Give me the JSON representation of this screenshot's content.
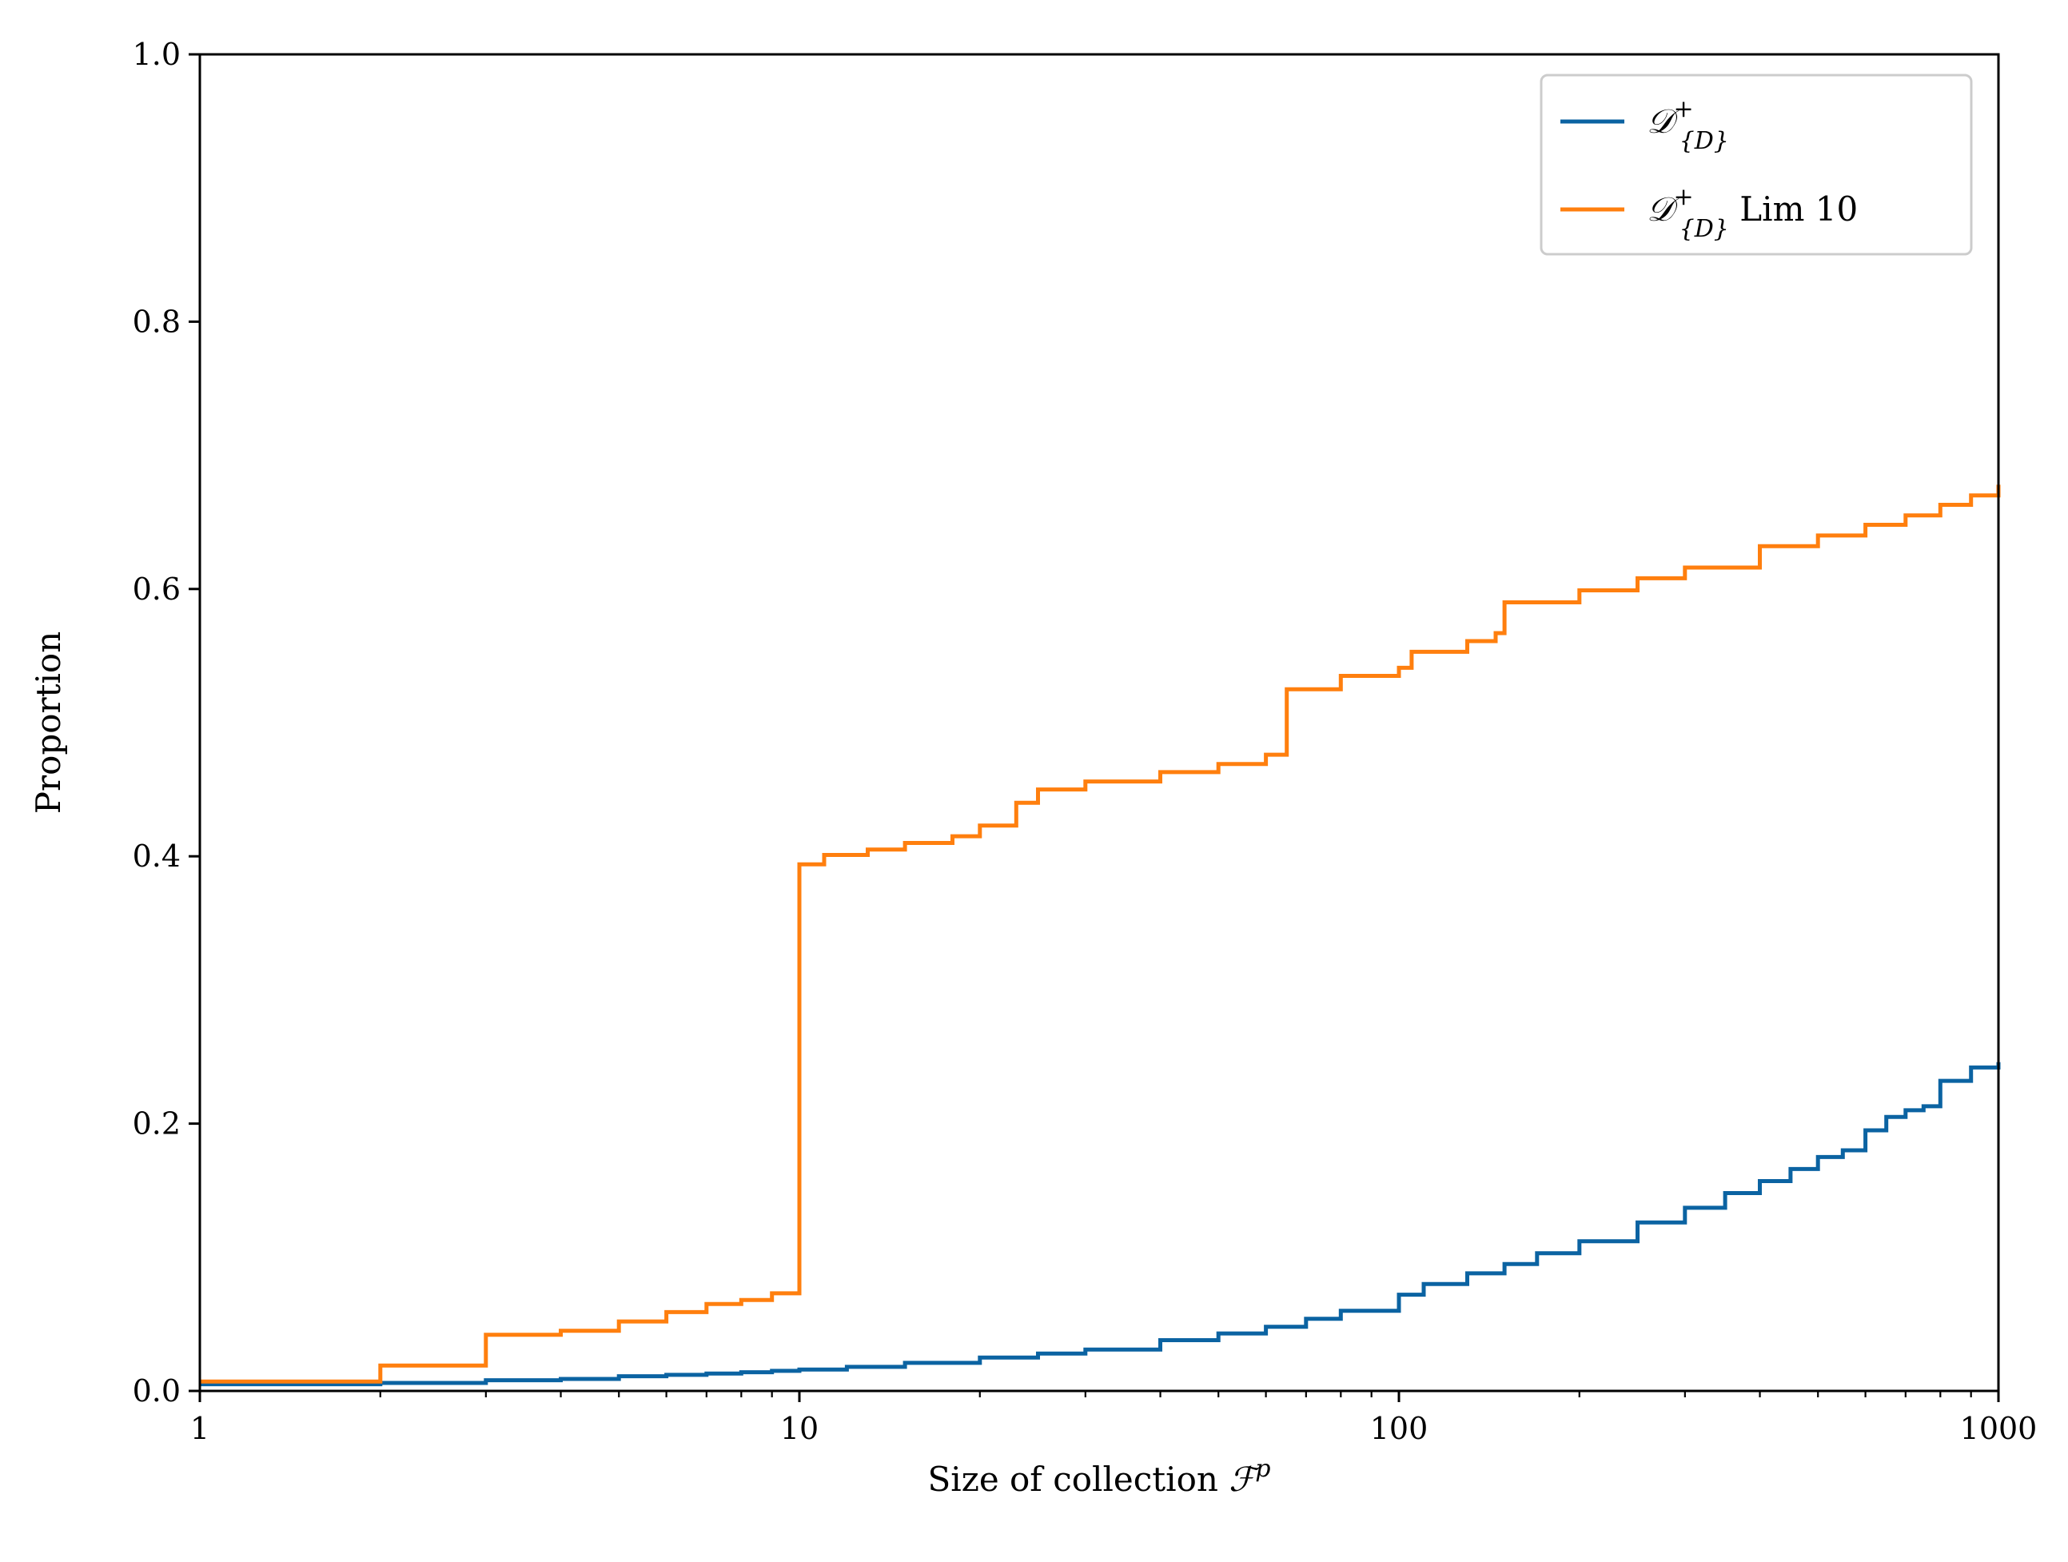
{
  "chart_data": {
    "type": "line",
    "xlabel": {
      "text": "Size of collection ",
      "math_symbol": "ℱ",
      "math_superscript": "p"
    },
    "ylabel": "Proportion",
    "x_scale": "log",
    "xlim": [
      1,
      1000
    ],
    "ylim": [
      0,
      1.0
    ],
    "x_ticks": [
      1,
      10,
      100,
      1000
    ],
    "x_tick_labels": [
      "1",
      "10",
      "100",
      "1000"
    ],
    "y_ticks": [
      0,
      0.2,
      0.4,
      0.6,
      0.8,
      1.0
    ],
    "y_tick_labels": [
      "0.0",
      "0.2",
      "0.4",
      "0.6",
      "0.8",
      "1.0"
    ],
    "grid": false,
    "legend_position": "top-right",
    "series": [
      {
        "name": "𝒟⁺{D}",
        "legend": {
          "symbol": "𝒟",
          "superscript": "+",
          "subscript": "{D}",
          "suffix": ""
        },
        "color": "#0b63a2",
        "step": true,
        "x": [
          1,
          2,
          3,
          4,
          5,
          6,
          7,
          8,
          9,
          10,
          12,
          15,
          20,
          25,
          30,
          40,
          50,
          60,
          70,
          80,
          100,
          110,
          130,
          150,
          170,
          200,
          250,
          300,
          350,
          400,
          450,
          500,
          550,
          600,
          650,
          700,
          750,
          800,
          900,
          1000
        ],
        "y": [
          0.005,
          0.006,
          0.008,
          0.009,
          0.011,
          0.012,
          0.013,
          0.014,
          0.015,
          0.016,
          0.018,
          0.021,
          0.025,
          0.028,
          0.031,
          0.038,
          0.043,
          0.048,
          0.054,
          0.06,
          0.072,
          0.08,
          0.088,
          0.095,
          0.103,
          0.112,
          0.126,
          0.137,
          0.148,
          0.157,
          0.166,
          0.175,
          0.18,
          0.195,
          0.205,
          0.21,
          0.213,
          0.232,
          0.242,
          0.246
        ]
      },
      {
        "name": "𝒟⁺{D} Lim 10",
        "legend": {
          "symbol": "𝒟",
          "superscript": "+",
          "subscript": "{D}",
          "suffix": " Lim 10"
        },
        "color": "#ff7f0e",
        "step": true,
        "x": [
          1,
          2,
          3,
          4,
          5,
          6,
          7,
          8,
          9,
          10,
          11,
          13,
          15,
          18,
          20,
          23,
          25,
          30,
          40,
          50,
          60,
          65,
          80,
          100,
          105,
          130,
          145,
          150,
          200,
          250,
          300,
          400,
          500,
          600,
          700,
          800,
          900,
          1000
        ],
        "y": [
          0.007,
          0.019,
          0.042,
          0.045,
          0.052,
          0.059,
          0.065,
          0.068,
          0.073,
          0.394,
          0.401,
          0.405,
          0.41,
          0.415,
          0.423,
          0.44,
          0.45,
          0.456,
          0.463,
          0.469,
          0.476,
          0.525,
          0.535,
          0.541,
          0.553,
          0.561,
          0.567,
          0.59,
          0.599,
          0.608,
          0.616,
          0.632,
          0.64,
          0.648,
          0.655,
          0.663,
          0.67,
          0.678
        ]
      }
    ]
  }
}
